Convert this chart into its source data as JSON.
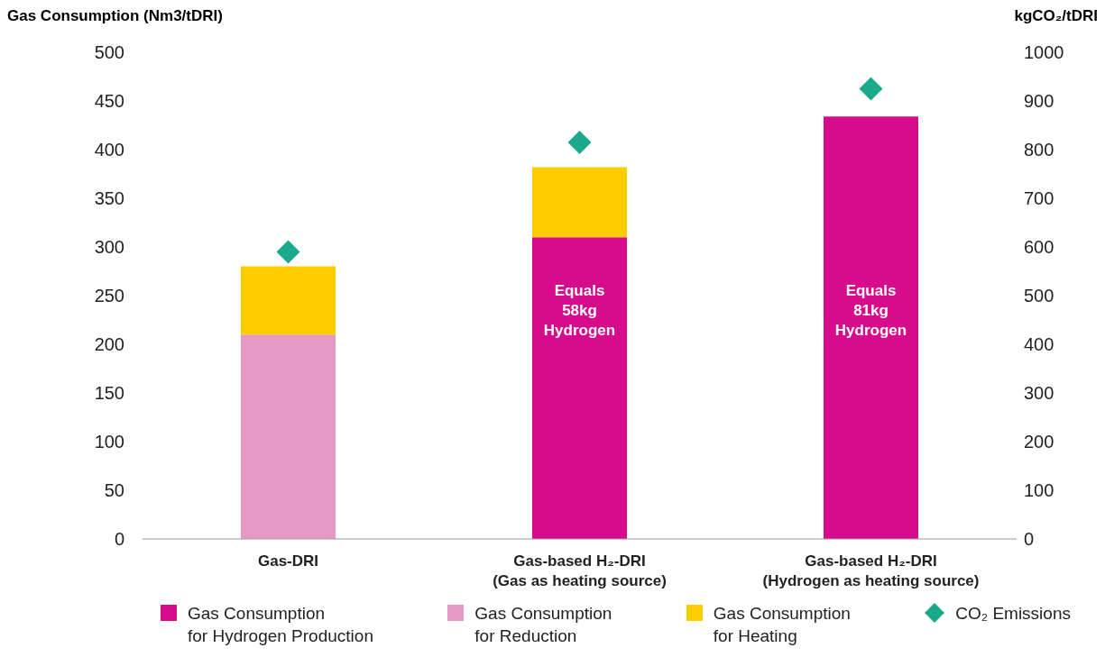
{
  "chart_data": {
    "type": "bar",
    "ylabel": "Gas Consumption (Nm3/tDRI)",
    "y2label": "kgCO₂/tDRI",
    "categories": [
      "Gas-DRI",
      "Gas-based H₂-DRI\n(Gas as heating source)",
      "Gas-based H₂-DRI\n(Hydrogen as heating source)"
    ],
    "stacked": true,
    "series": [
      {
        "name": "Gas Consumption\nfor Hydrogen Production",
        "color": "#d70c8c",
        "values": [
          null,
          310,
          434
        ]
      },
      {
        "name": "Gas Consumption\nfor Reduction",
        "color": "#e699c2",
        "values": [
          210,
          null,
          null
        ]
      },
      {
        "name": "Gas Consumption\nfor Heating",
        "color": "#ffcc00",
        "values": [
          70,
          72,
          null
        ]
      },
      {
        "name": "CO₂ Emissions",
        "type": "scatter",
        "axis": "y2",
        "marker": "diamond",
        "color": "#1aa98a",
        "values": [
          590,
          815,
          925
        ]
      }
    ],
    "ylim": [
      0,
      500
    ],
    "yticks": [
      0,
      50,
      100,
      150,
      200,
      250,
      300,
      350,
      400,
      450,
      500
    ],
    "y2lim": [
      0,
      1000
    ],
    "y2ticks": [
      0,
      100,
      200,
      300,
      400,
      500,
      600,
      700,
      800,
      900,
      1000
    ],
    "annotations": [
      "Equals\n58kg\nHydrogen",
      "Equals\n81kg\nHydrogen"
    ],
    "grid": false,
    "legend": "bottom"
  }
}
